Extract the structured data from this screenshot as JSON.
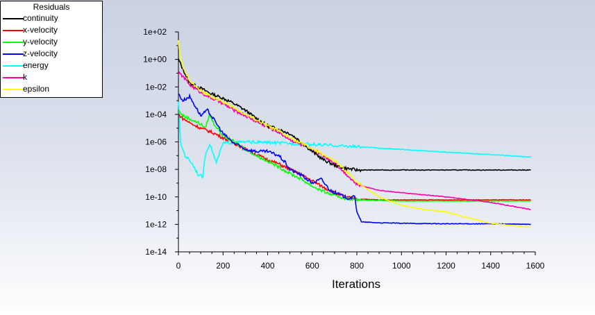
{
  "legend": {
    "title": "Residuals"
  },
  "chart_data": {
    "type": "line",
    "title": "",
    "xlabel": "Iterations",
    "ylabel": "",
    "xlim": [
      0,
      1600
    ],
    "ylim_log10": [
      -14,
      2
    ],
    "yscale": "log",
    "grid": false,
    "legend_placement": "top-left",
    "x_ticks": [
      "0",
      "200",
      "400",
      "600",
      "800",
      "1000",
      "1200",
      "1400",
      "1600"
    ],
    "y_ticks": [
      "1e-14",
      "1e-12",
      "1e-10",
      "1e-08",
      "1e-06",
      "1e-04",
      "1e-02",
      "1e+00",
      "1e+02"
    ],
    "series": [
      {
        "name": "continuity",
        "color": "#000000",
        "points": [
          [
            0,
            1.0
          ],
          [
            20,
            0.2
          ],
          [
            50,
            0.02
          ],
          [
            100,
            0.008
          ],
          [
            150,
            0.003
          ],
          [
            200,
            0.0015
          ],
          [
            250,
            0.0006
          ],
          [
            300,
            0.0002
          ],
          [
            350,
            5e-05
          ],
          [
            400,
            1.5e-05
          ],
          [
            450,
            8e-06
          ],
          [
            500,
            4e-06
          ],
          [
            550,
            1e-06
          ],
          [
            600,
            2e-07
          ],
          [
            650,
            5e-08
          ],
          [
            700,
            2e-08
          ],
          [
            750,
            1.2e-08
          ],
          [
            800,
            9e-09
          ],
          [
            1000,
            9e-09
          ],
          [
            1200,
            9e-09
          ],
          [
            1400,
            9e-09
          ],
          [
            1580,
            9e-09
          ]
        ]
      },
      {
        "name": "x-velocity",
        "color": "#ff0000",
        "points": [
          [
            0,
            0.0001
          ],
          [
            20,
            5e-05
          ],
          [
            60,
            2e-05
          ],
          [
            100,
            1e-05
          ],
          [
            150,
            5e-06
          ],
          [
            200,
            2e-06
          ],
          [
            250,
            8e-07
          ],
          [
            300,
            3e-07
          ],
          [
            350,
            1.2e-07
          ],
          [
            400,
            5e-08
          ],
          [
            450,
            2.5e-08
          ],
          [
            500,
            1e-08
          ],
          [
            550,
            4e-09
          ],
          [
            600,
            1.5e-09
          ],
          [
            650,
            5e-10
          ],
          [
            700,
            2e-10
          ],
          [
            750,
            1e-10
          ],
          [
            800,
            7e-11
          ],
          [
            900,
            6e-11
          ],
          [
            1100,
            6e-11
          ],
          [
            1300,
            6e-11
          ],
          [
            1580,
            6e-11
          ]
        ]
      },
      {
        "name": "y-velocity",
        "color": "#00ff00",
        "points": [
          [
            0,
            0.0002
          ],
          [
            20,
            8e-05
          ],
          [
            60,
            4e-05
          ],
          [
            100,
            2e-05
          ],
          [
            120,
            1e-05
          ],
          [
            140,
            0.0001
          ],
          [
            160,
            2e-05
          ],
          [
            200,
            3e-06
          ],
          [
            250,
            1e-06
          ],
          [
            300,
            3e-07
          ],
          [
            350,
            1e-07
          ],
          [
            400,
            4e-08
          ],
          [
            450,
            1.5e-08
          ],
          [
            500,
            5e-09
          ],
          [
            550,
            2e-09
          ],
          [
            600,
            6e-10
          ],
          [
            650,
            2.5e-10
          ],
          [
            700,
            1.2e-10
          ],
          [
            750,
            8e-11
          ],
          [
            800,
            6e-11
          ],
          [
            1000,
            5e-11
          ],
          [
            1200,
            5e-11
          ],
          [
            1400,
            5e-11
          ],
          [
            1580,
            5e-11
          ]
        ]
      },
      {
        "name": "z-velocity",
        "color": "#0000ff",
        "points": [
          [
            0,
            0.003
          ],
          [
            20,
            0.001
          ],
          [
            50,
            0.002
          ],
          [
            80,
            0.0003
          ],
          [
            100,
            8e-05
          ],
          [
            130,
            0.0002
          ],
          [
            160,
            4e-05
          ],
          [
            200,
            4e-06
          ],
          [
            250,
            8e-07
          ],
          [
            300,
            3e-07
          ],
          [
            350,
            2e-07
          ],
          [
            400,
            2e-07
          ],
          [
            450,
            1e-07
          ],
          [
            480,
            3e-08
          ],
          [
            500,
            1e-08
          ],
          [
            550,
            4e-09
          ],
          [
            600,
            1e-09
          ],
          [
            640,
            2e-09
          ],
          [
            680,
            3e-10
          ],
          [
            720,
            1.5e-10
          ],
          [
            760,
            8e-11
          ],
          [
            790,
            1e-10
          ],
          [
            800,
            1e-11
          ],
          [
            820,
            1.5e-12
          ],
          [
            900,
            1.3e-12
          ],
          [
            1000,
            1.2e-12
          ],
          [
            1200,
            1.1e-12
          ],
          [
            1400,
            1.1e-12
          ],
          [
            1580,
            1e-12
          ]
        ]
      },
      {
        "name": "energy",
        "color": "#00ffff",
        "points": [
          [
            0,
            0.001
          ],
          [
            10,
            8e-07
          ],
          [
            30,
            1e-07
          ],
          [
            60,
            3e-08
          ],
          [
            90,
            4e-09
          ],
          [
            110,
            3e-09
          ],
          [
            120,
            1e-07
          ],
          [
            140,
            8e-07
          ],
          [
            170,
            3e-08
          ],
          [
            200,
            8e-07
          ],
          [
            300,
            1e-06
          ],
          [
            400,
            9e-07
          ],
          [
            600,
            6.5e-07
          ],
          [
            800,
            4.5e-07
          ],
          [
            1000,
            2.8e-07
          ],
          [
            1200,
            1.8e-07
          ],
          [
            1400,
            1.2e-07
          ],
          [
            1580,
            8e-08
          ]
        ]
      },
      {
        "name": "k",
        "color": "#ff00aa",
        "points": [
          [
            0,
            0.1
          ],
          [
            20,
            0.06
          ],
          [
            50,
            0.015
          ],
          [
            100,
            0.004
          ],
          [
            150,
            0.0015
          ],
          [
            200,
            0.0006
          ],
          [
            250,
            0.0002
          ],
          [
            300,
            8e-05
          ],
          [
            350,
            3e-05
          ],
          [
            400,
            1.2e-05
          ],
          [
            450,
            5e-06
          ],
          [
            500,
            1.5e-06
          ],
          [
            550,
            6e-07
          ],
          [
            600,
            2.5e-07
          ],
          [
            650,
            1e-07
          ],
          [
            700,
            3e-08
          ],
          [
            750,
            5e-09
          ],
          [
            800,
            8e-10
          ],
          [
            900,
            3e-10
          ],
          [
            1000,
            2e-10
          ],
          [
            1200,
            1e-10
          ],
          [
            1400,
            4e-11
          ],
          [
            1580,
            1.2e-11
          ]
        ]
      },
      {
        "name": "epsilon",
        "color": "#ffff00",
        "points": [
          [
            0,
            20.0
          ],
          [
            10,
            1.0
          ],
          [
            30,
            0.1
          ],
          [
            60,
            0.02
          ],
          [
            100,
            0.005
          ],
          [
            150,
            0.002
          ],
          [
            200,
            0.0008
          ],
          [
            250,
            0.0003
          ],
          [
            300,
            0.0001
          ],
          [
            350,
            4e-05
          ],
          [
            400,
            1.5e-05
          ],
          [
            450,
            6e-06
          ],
          [
            500,
            2e-06
          ],
          [
            550,
            8e-07
          ],
          [
            600,
            3e-07
          ],
          [
            650,
            1.2e-07
          ],
          [
            700,
            4e-08
          ],
          [
            750,
            8e-09
          ],
          [
            800,
            1.2e-09
          ],
          [
            900,
            1e-10
          ],
          [
            1000,
            2.5e-11
          ],
          [
            1100,
            1.2e-11
          ],
          [
            1200,
            8e-12
          ],
          [
            1300,
            3e-12
          ],
          [
            1400,
            1.2e-12
          ],
          [
            1500,
            8e-13
          ],
          [
            1580,
            6e-13
          ]
        ]
      }
    ]
  }
}
